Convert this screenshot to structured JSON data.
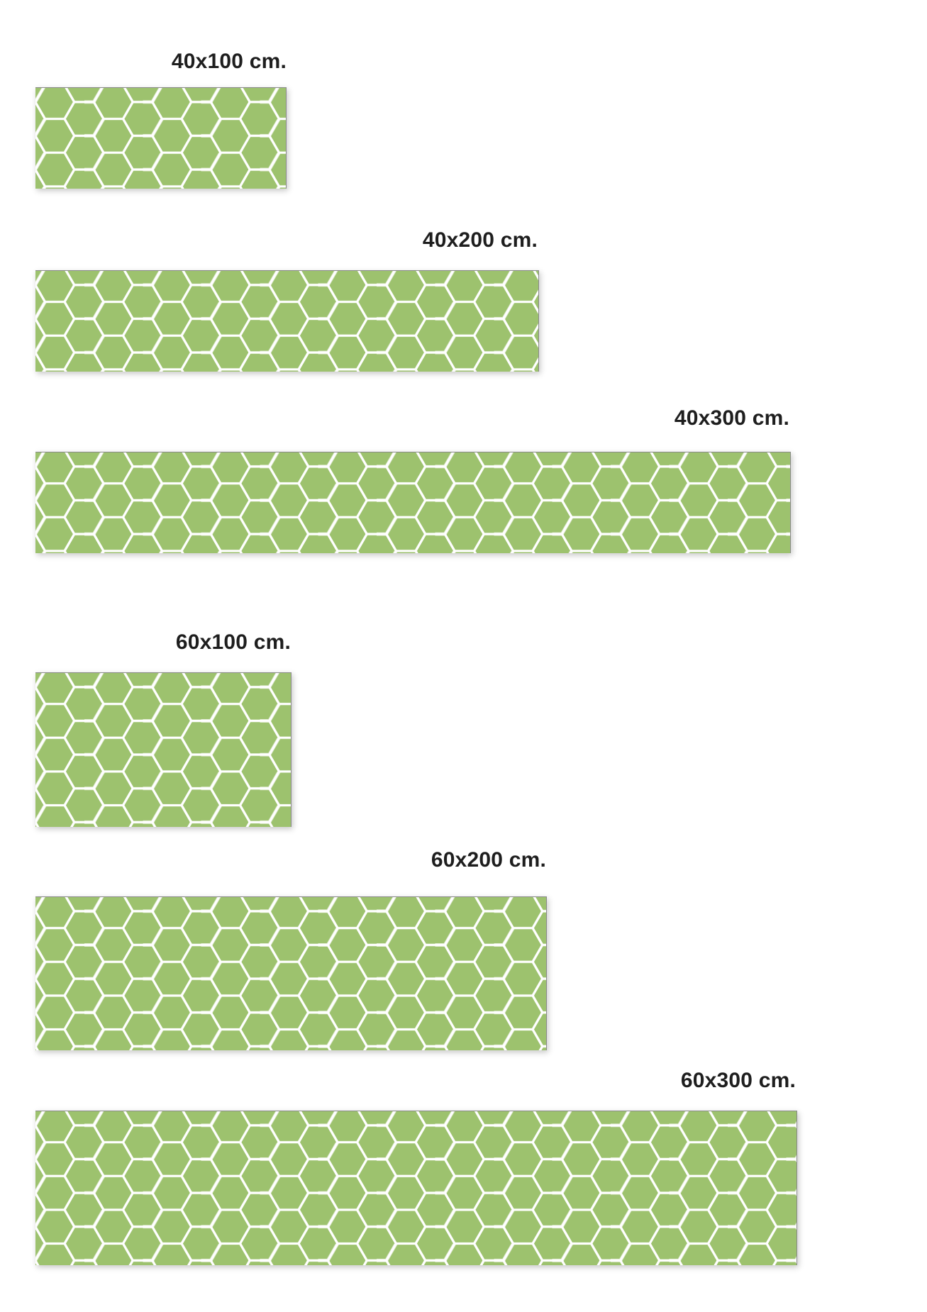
{
  "panels": [
    {
      "label": "40x100 cm."
    },
    {
      "label": "40x200 cm."
    },
    {
      "label": "40x300 cm."
    },
    {
      "label": "60x100 cm."
    },
    {
      "label": "60x200 cm."
    },
    {
      "label": "60x300 cm."
    }
  ],
  "colors": {
    "tile": "#9dc26e",
    "grout": "#ffffff",
    "text": "#1e1e1e"
  }
}
